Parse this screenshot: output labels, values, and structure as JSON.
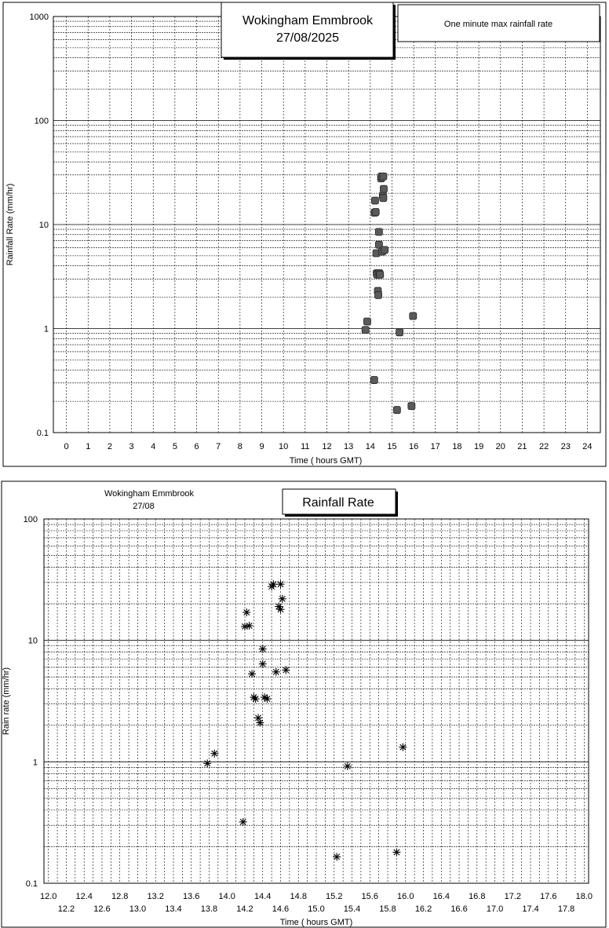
{
  "chart_data": [
    {
      "type": "scatter",
      "title": "Wokingham Emmbrook",
      "subtitle": "27/08/2025",
      "legend": "One minute max rainfall rate",
      "xlabel": "Time ( hours GMT)",
      "ylabel": "Rainfall Rate  (mm/hr)",
      "yscale": "log",
      "xlim": [
        -0.6,
        24.6
      ],
      "ylim": [
        0.1,
        1000
      ],
      "xticks": [
        "0",
        "1",
        "2",
        "3",
        "4",
        "5",
        "6",
        "7",
        "8",
        "9",
        "10",
        "11",
        "12",
        "13",
        "14",
        "15",
        "16",
        "17",
        "18",
        "19",
        "20",
        "21",
        "22",
        "23",
        "24"
      ],
      "yticks": [
        "0.1",
        "1",
        "10",
        "100",
        "1000"
      ],
      "grid": true,
      "marker": "filled-square",
      "series": [
        {
          "x": [
            13.78,
            13.86,
            14.18,
            14.2,
            14.22,
            14.25,
            14.28,
            14.3,
            14.32,
            14.35,
            14.37,
            14.4,
            14.4,
            14.42,
            14.45,
            14.5,
            14.52,
            14.55,
            14.58,
            14.6,
            14.6,
            14.62,
            14.66,
            15.23,
            15.35,
            15.9,
            15.97
          ],
          "y": [
            0.97,
            1.17,
            0.32,
            13.0,
            17.0,
            13.2,
            5.3,
            3.4,
            3.3,
            2.3,
            2.1,
            8.5,
            6.4,
            3.4,
            3.3,
            27.8,
            29.0,
            5.5,
            19.0,
            18.0,
            29.0,
            22.0,
            5.7,
            0.165,
            0.92,
            0.18,
            1.32
          ]
        }
      ]
    },
    {
      "type": "scatter",
      "title": "Rainfall Rate",
      "station": "Wokingham Emmbrook",
      "date": "27/08",
      "xlabel": "Time ( hours GMT)",
      "ylabel": "Rain rate  (mm/hr)",
      "yscale": "log",
      "xlim": [
        11.95,
        18.05
      ],
      "ylim": [
        0.1,
        100
      ],
      "xticks_upper": [
        "12.0",
        "12.4",
        "12.8",
        "13.2",
        "13.6",
        "14.0",
        "14.4",
        "14.8",
        "15.2",
        "15.6",
        "16.0",
        "16.4",
        "16.8",
        "17.2",
        "17.6",
        "18.0"
      ],
      "xticks_lower": [
        "12.2",
        "12.6",
        "13.0",
        "13.4",
        "13.8",
        "14.2",
        "14.6",
        "15.0",
        "15.4",
        "15.8",
        "16.2",
        "16.6",
        "17.0",
        "17.4",
        "17.8"
      ],
      "yticks": [
        "0.1",
        "1",
        "10",
        "100"
      ],
      "grid": true,
      "marker": "asterisk",
      "series": [
        {
          "x": [
            13.78,
            13.86,
            14.18,
            14.2,
            14.22,
            14.25,
            14.28,
            14.3,
            14.32,
            14.35,
            14.37,
            14.4,
            14.4,
            14.42,
            14.45,
            14.5,
            14.52,
            14.55,
            14.58,
            14.6,
            14.6,
            14.62,
            14.66,
            15.23,
            15.35,
            15.9,
            15.97
          ],
          "y": [
            0.97,
            1.17,
            0.32,
            13.0,
            17.0,
            13.2,
            5.3,
            3.4,
            3.3,
            2.3,
            2.1,
            8.5,
            6.4,
            3.4,
            3.3,
            27.8,
            29.0,
            5.5,
            19.0,
            18.0,
            29.0,
            22.0,
            5.7,
            0.165,
            0.92,
            0.18,
            1.32
          ]
        }
      ]
    }
  ]
}
